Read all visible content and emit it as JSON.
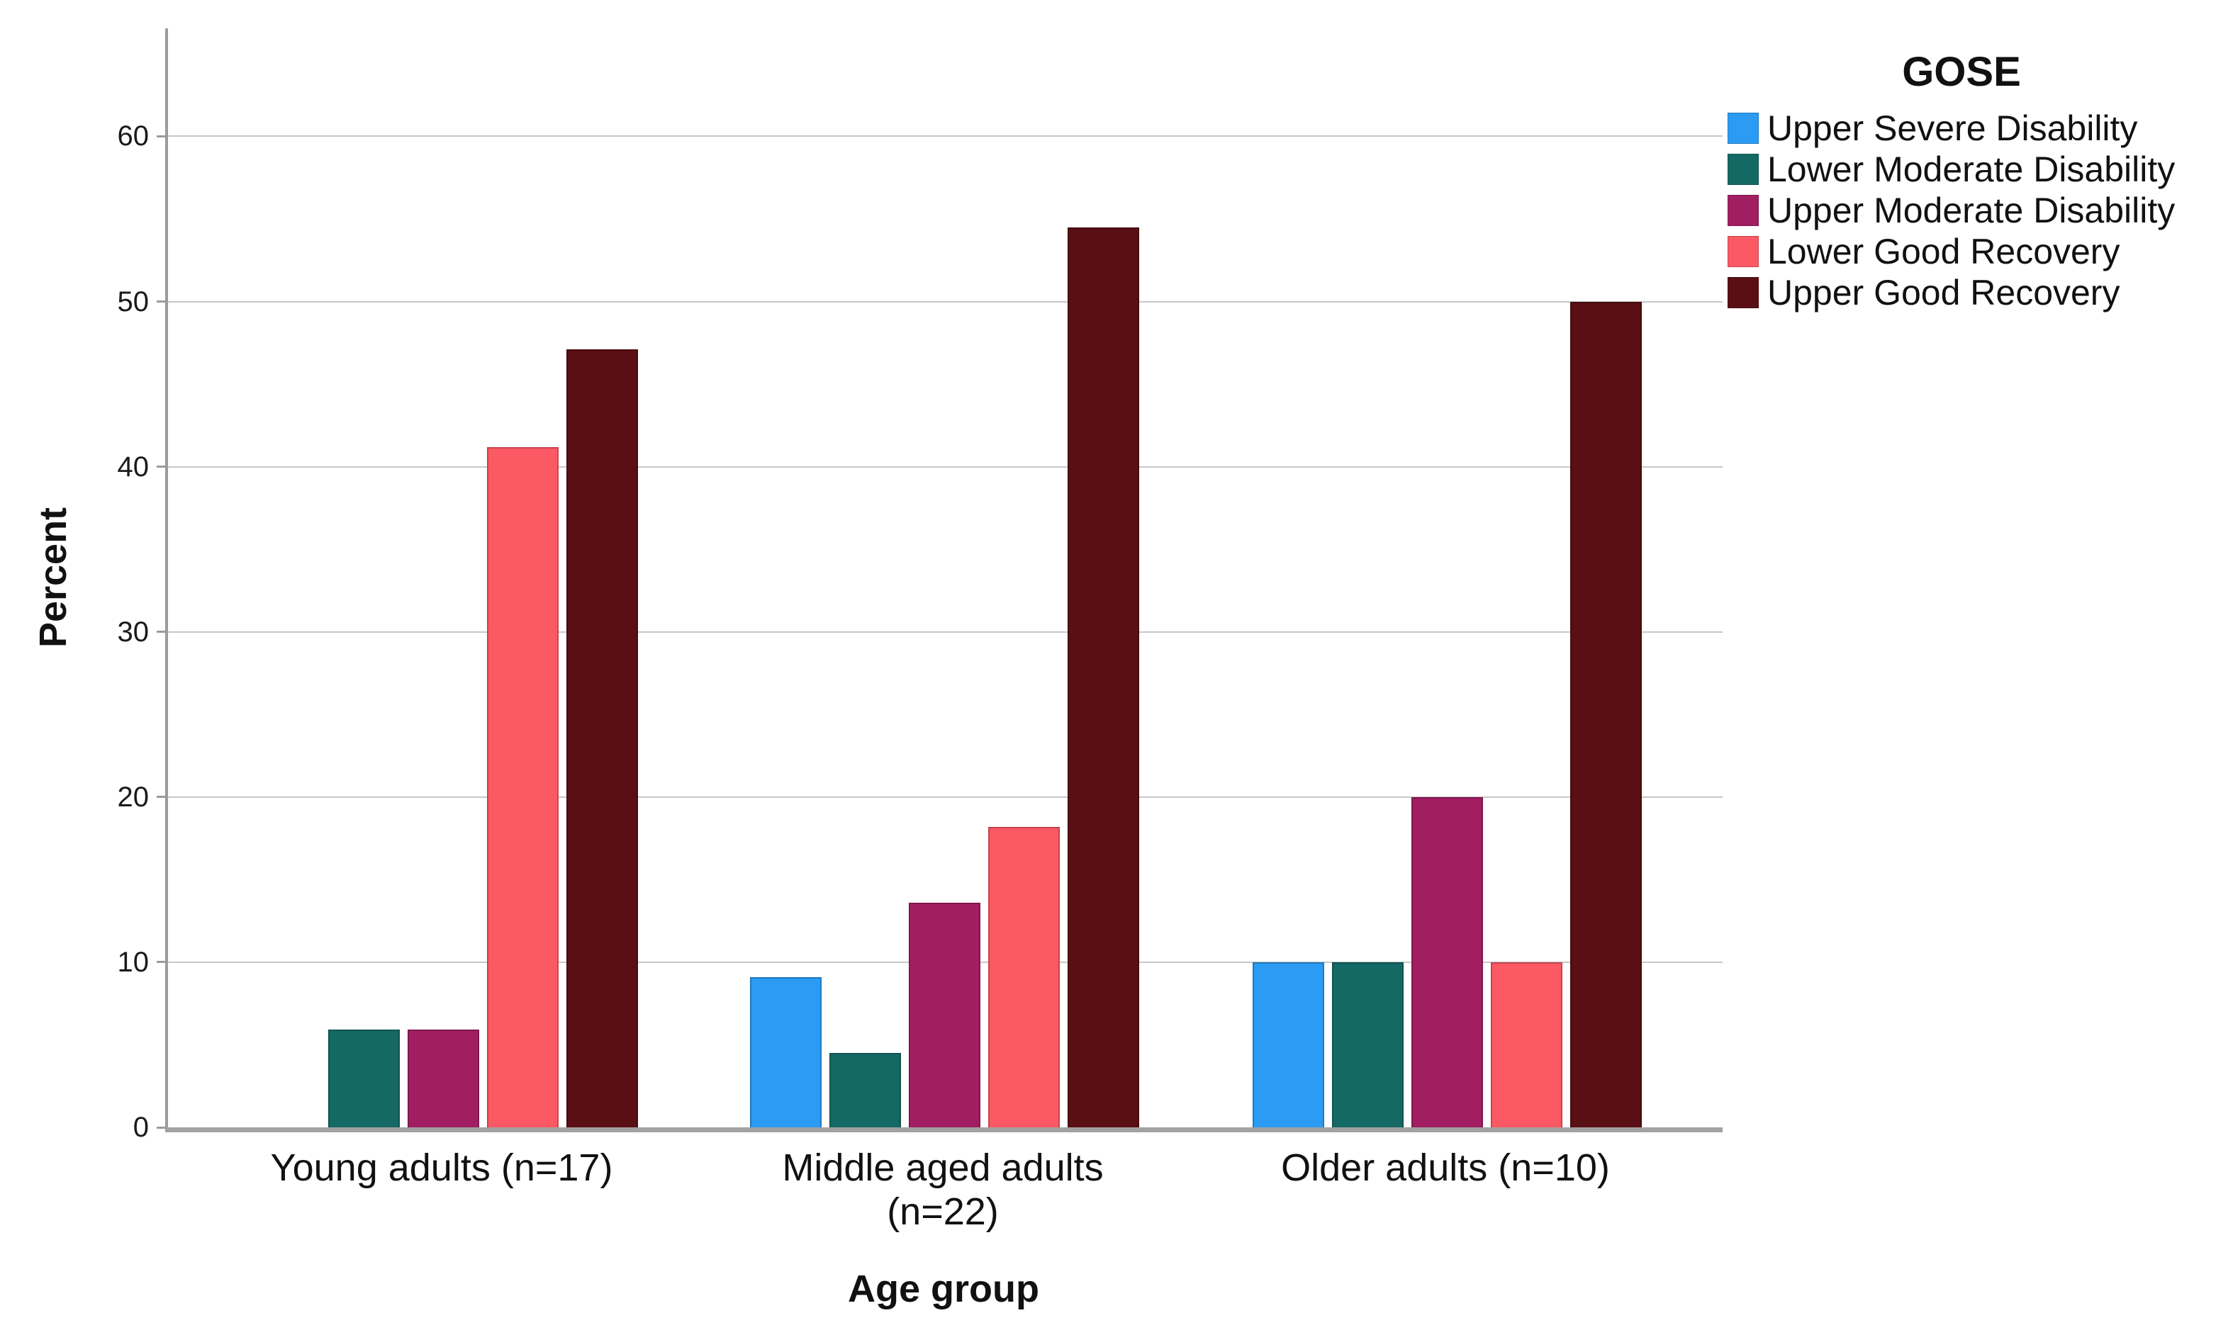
{
  "figure": {
    "y_axis_title": "Percent",
    "x_axis_title": "Age group",
    "legend_title": "GOSE"
  },
  "chart_data": {
    "type": "bar",
    "title": "",
    "xlabel": "Age group",
    "ylabel": "Percent",
    "ylim": [
      0,
      66.5
    ],
    "yticks": [
      0,
      10,
      20,
      30,
      40,
      50,
      60
    ],
    "grid": "horizontal",
    "legend_position": "right",
    "legend_title": "GOSE",
    "categories": [
      "Young adults (n=17)",
      "Middle aged adults (n=22)",
      "Older adults (n=10)"
    ],
    "category_label_lines": [
      [
        "Young adults (n=17)"
      ],
      [
        "Middle aged adults",
        "(n=22)"
      ],
      [
        "Older adults (n=10)"
      ]
    ],
    "series": [
      {
        "name": "Upper Severe Disability",
        "color": "#2b9bf3",
        "values": [
          0,
          9.1,
          10
        ]
      },
      {
        "name": "Lower Moderate Disability",
        "color": "#156964",
        "values": [
          5.9,
          4.5,
          10
        ]
      },
      {
        "name": "Upper Moderate Disability",
        "color": "#a21e62",
        "values": [
          5.9,
          13.6,
          20
        ]
      },
      {
        "name": "Lower Good Recovery",
        "color": "#fb5964",
        "values": [
          41.2,
          18.2,
          10
        ]
      },
      {
        "name": "Upper Good Recovery",
        "color": "#5a0f15",
        "values": [
          47.1,
          54.5,
          50
        ]
      }
    ],
    "colors": {
      "gridline": "#c8c8c8",
      "axis": "#9b9b9b",
      "text": "#000000",
      "background": "#ffffff"
    }
  }
}
